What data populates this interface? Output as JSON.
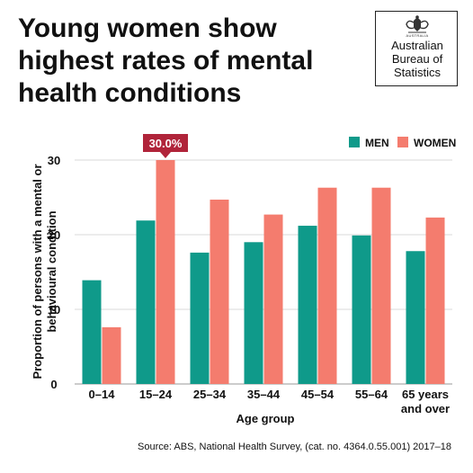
{
  "title": "Young women show highest rates of mental health conditions",
  "logo": {
    "text_lines": [
      "Australian",
      "Bureau of",
      "Statistics"
    ],
    "crest_text": "AUSTRALIA"
  },
  "source": "Source: ABS, National Health Survey, (cat. no. 4364.0.55.001) 2017–18",
  "colors": {
    "men": "#0f9a8a",
    "women": "#f47c6e",
    "callout": "#b0243a"
  },
  "chart_data": {
    "type": "bar",
    "title": "Young women show highest rates of mental health conditions",
    "xlabel": "Age group",
    "ylabel": "Proportion of persons with a mental or behavioural condition",
    "categories": [
      [
        "0–14"
      ],
      [
        "15–24"
      ],
      [
        "25–34"
      ],
      [
        "35–44"
      ],
      [
        "45–54"
      ],
      [
        "55–64"
      ],
      [
        "65 years",
        "and over"
      ]
    ],
    "series": [
      {
        "name": "MEN",
        "values": [
          13.9,
          21.9,
          17.6,
          19.0,
          21.2,
          19.9,
          17.8
        ]
      },
      {
        "name": "WOMEN",
        "values": [
          7.6,
          30.0,
          24.7,
          22.7,
          26.3,
          26.3,
          22.3
        ]
      }
    ],
    "ylim": [
      0,
      30
    ],
    "yticks": [
      0,
      10,
      20,
      30
    ],
    "grid": true,
    "legend_position": "top-right",
    "annotation": {
      "category_index": 1,
      "series": "WOMEN",
      "text": "30.0%"
    }
  }
}
